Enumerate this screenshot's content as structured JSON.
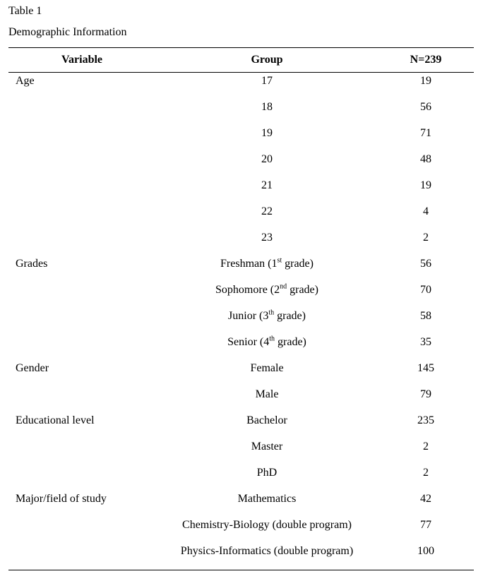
{
  "caption": {
    "label": "Table 1",
    "title": "Demographic Information"
  },
  "table": {
    "headers": {
      "variable": "Variable",
      "group": "Group",
      "n": "N=239"
    },
    "rows": [
      {
        "variable": "Age",
        "group": "17",
        "n": "19"
      },
      {
        "variable": "",
        "group": "18",
        "n": "56"
      },
      {
        "variable": "",
        "group": "19",
        "n": "71"
      },
      {
        "variable": "",
        "group": "20",
        "n": "48"
      },
      {
        "variable": "",
        "group": "21",
        "n": "19"
      },
      {
        "variable": "",
        "group": "22",
        "n": "4"
      },
      {
        "variable": "",
        "group": "23",
        "n": "2"
      },
      {
        "variable": "Grades",
        "group": "Freshman (1",
        "sup": "st",
        "group_after": " grade)",
        "n": "56"
      },
      {
        "variable": "",
        "group": "Sophomore (2",
        "sup": "nd",
        "group_after": " grade)",
        "n": "70"
      },
      {
        "variable": "",
        "group": "Junior (3",
        "sup": "th",
        "group_after": " grade)",
        "n": "58"
      },
      {
        "variable": "",
        "group": "Senior (4",
        "sup": "th",
        "group_after": " grade)",
        "n": "35"
      },
      {
        "variable": "Gender",
        "group": "Female",
        "n": "145"
      },
      {
        "variable": "",
        "group": "Male",
        "n": "79"
      },
      {
        "variable": "Educational level",
        "group": "Bachelor",
        "n": "235"
      },
      {
        "variable": "",
        "group": "Master",
        "n": "2"
      },
      {
        "variable": "",
        "group": "PhD",
        "n": "2"
      },
      {
        "variable": "Major/field of study",
        "group": "Mathematics",
        "n": "42"
      },
      {
        "variable": "",
        "group": "Chemistry-Biology (double program)",
        "n": "77"
      },
      {
        "variable": "",
        "group": "Physics-Informatics (double program)",
        "n": "100"
      }
    ]
  }
}
